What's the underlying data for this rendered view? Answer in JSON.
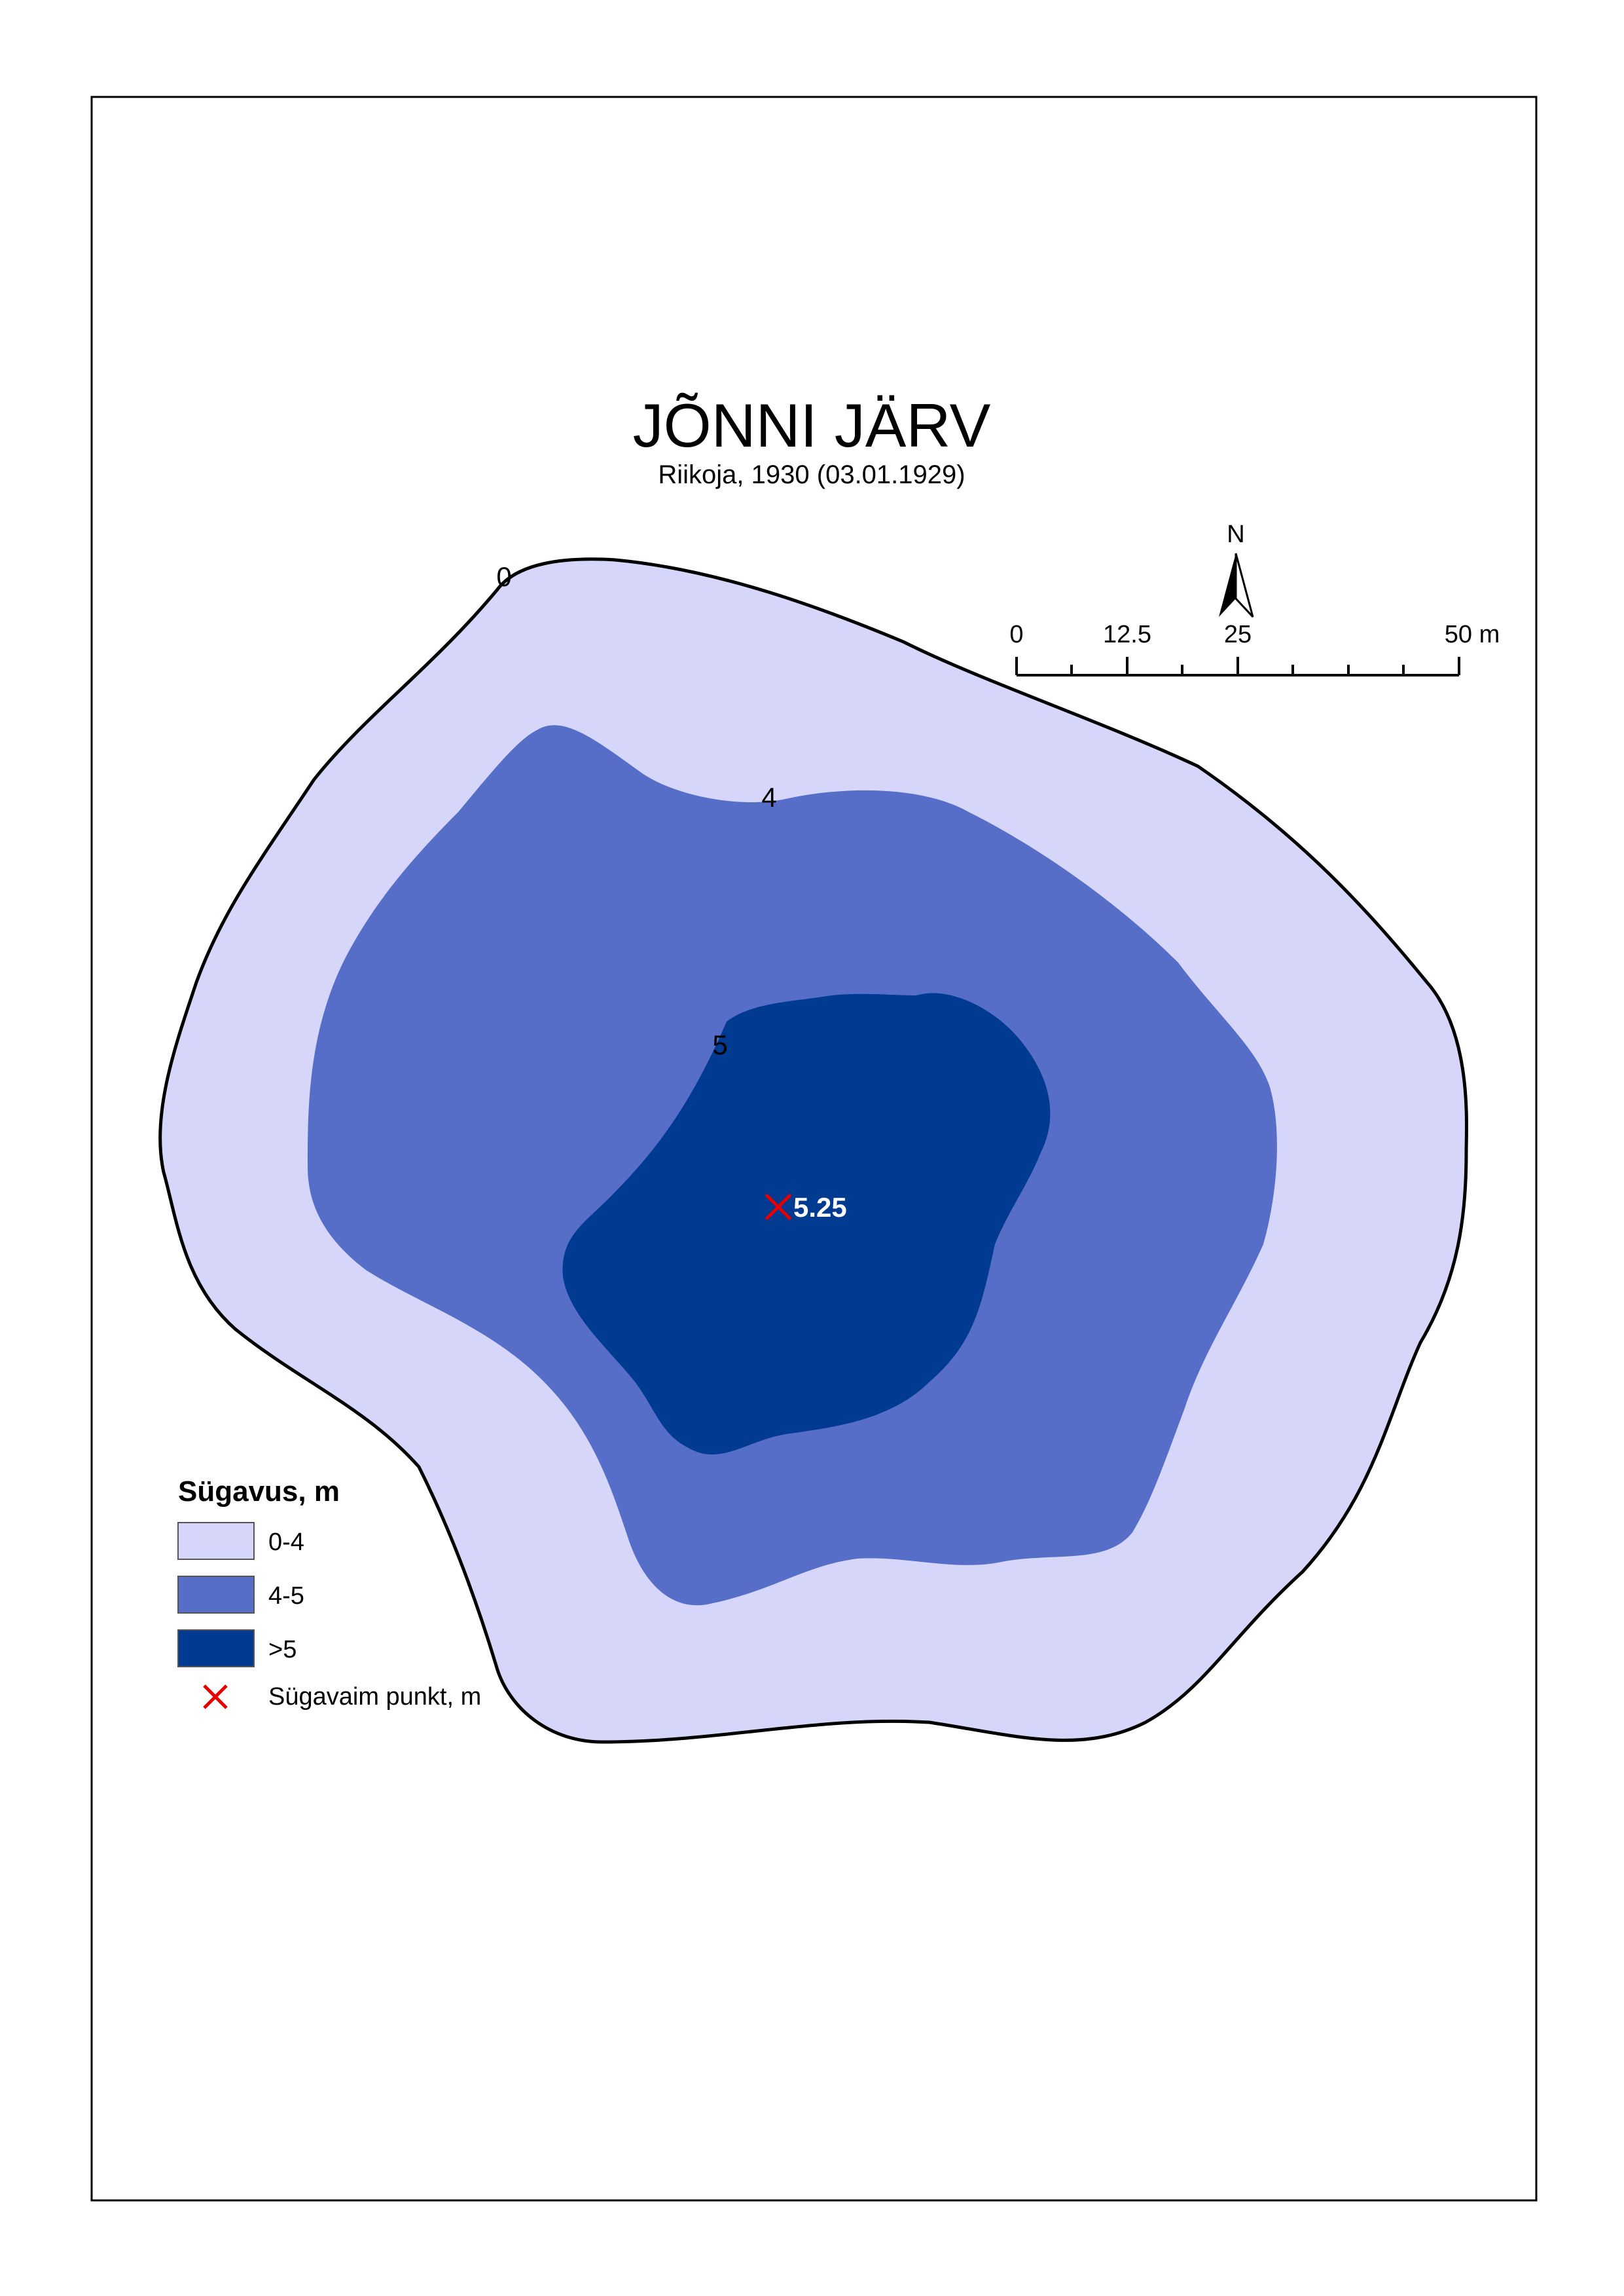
{
  "title": "JÕNNI JÄRV",
  "subtitle": "Riikoja, 1930 (03.01.1929)",
  "north_arrow": {
    "label": "N",
    "icon": "north-arrow-icon"
  },
  "scale_bar": {
    "labels": [
      "0",
      "12.5",
      "25",
      "50 m"
    ],
    "max_value": 50,
    "unit": "m"
  },
  "contours": {
    "shore_label": "0",
    "label_4": "4",
    "label_5": "5"
  },
  "deepest_point": {
    "value": "5.25",
    "icon": "cross-marker-icon",
    "color": "#e60000"
  },
  "legend": {
    "title": "Sügavus, m",
    "items": [
      {
        "label": "0-4",
        "color": "#d6d6fa"
      },
      {
        "label": "4-5",
        "color": "#566ec8"
      },
      {
        "label": ">5",
        "color": "#003a91"
      }
    ],
    "point_label": "Sügavaim punkt, m"
  },
  "colors": {
    "zone_0_4": "#d6d6fa",
    "zone_4_5": "#566ec8",
    "zone_over_5": "#003a91",
    "marker": "#e60000",
    "frame": "#000000"
  }
}
